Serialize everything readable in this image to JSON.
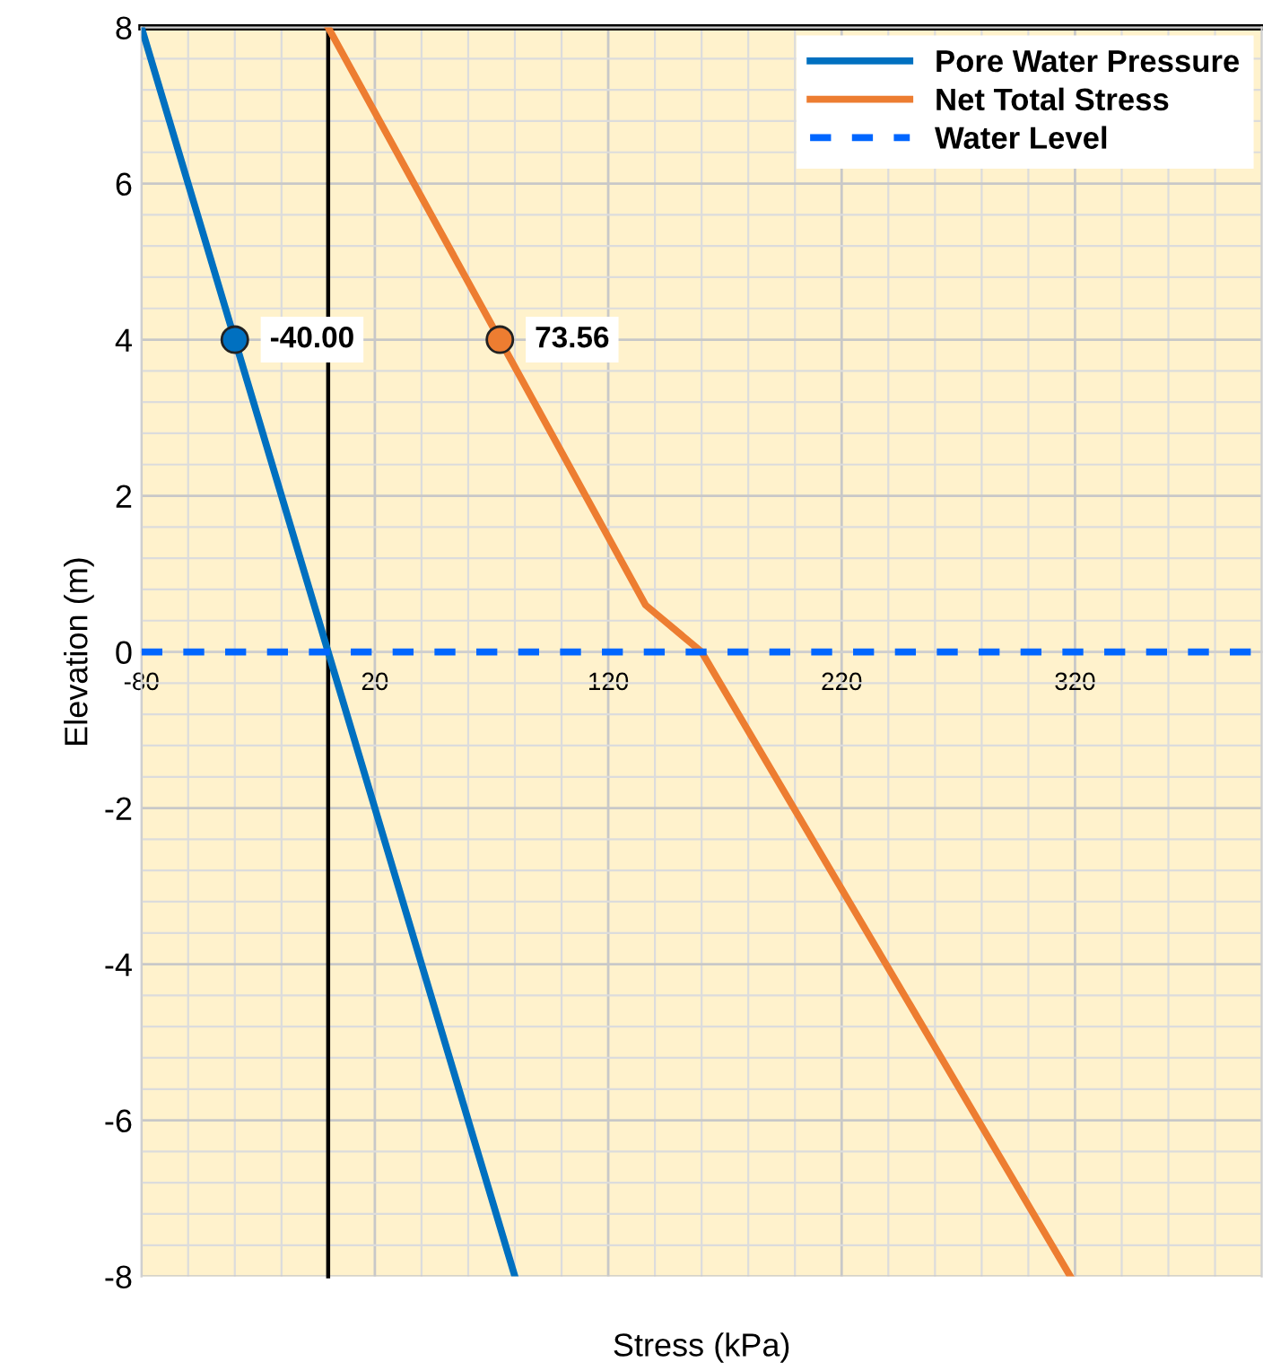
{
  "chart_data": {
    "type": "line",
    "xlabel": "Stress (kPa)",
    "ylabel": "Elevation (m)",
    "xlim": [
      -80,
      400
    ],
    "xticks": [
      -80,
      20,
      120,
      220,
      320
    ],
    "ylim": [
      -8,
      8
    ],
    "yticks": [
      -8,
      -6,
      -4,
      -2,
      0,
      2,
      4,
      6,
      8
    ],
    "grid": true,
    "legend": "top right",
    "series": [
      {
        "name": "Pore Water Pressure",
        "color": "#0070c0",
        "x": [
          -80,
          0,
          80
        ],
        "values": [
          8,
          0,
          -8
        ],
        "line_style": "solid"
      },
      {
        "name": "Net Total Stress",
        "color": "#ed7d31",
        "x": [
          0,
          73.56,
          136,
          160,
          318
        ],
        "values": [
          8,
          4,
          0.6,
          0,
          -8
        ],
        "line_style": "solid"
      },
      {
        "name": "Water Level",
        "color": "#0066ff",
        "x": [
          -80,
          400
        ],
        "values": [
          0,
          0
        ],
        "line_style": "dashed"
      },
      {
        "type": "scatter",
        "color": "#0070c0",
        "marker": "circle",
        "x": [
          -40
        ],
        "values": [
          4
        ]
      },
      {
        "type": "scatter",
        "color": "#ed7d31",
        "marker": "circle",
        "x": [
          73.56
        ],
        "values": [
          4
        ]
      }
    ],
    "annotations": [
      {
        "text": "-40.00",
        "x": -40,
        "y": 4
      },
      {
        "text": "73.56",
        "x": 73.56,
        "y": 4
      }
    ],
    "ref_lines": [
      {
        "axis": "x",
        "value": 0,
        "color": "#000000"
      },
      {
        "axis": "y",
        "value": 8,
        "color": "#000000"
      }
    ]
  }
}
